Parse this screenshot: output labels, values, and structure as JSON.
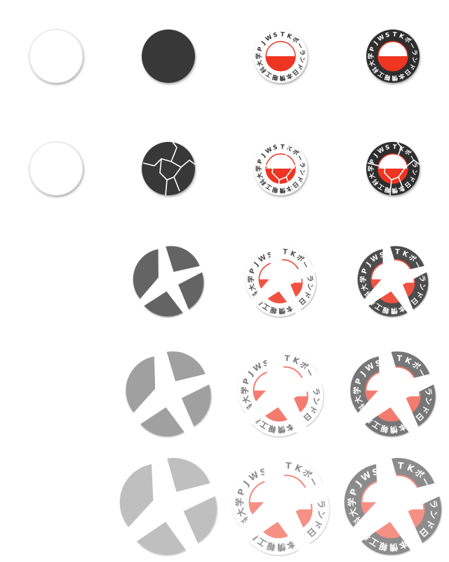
{
  "sheet": {
    "rows": [
      "intact",
      "cracked",
      "breaking",
      "shattering",
      "scattered"
    ],
    "columns": [
      "white-disc",
      "dark-disc",
      "light-badge",
      "dark-badge"
    ],
    "fragment_opacity": [
      1,
      1,
      0.85,
      0.65,
      0.55
    ]
  },
  "badge": {
    "arc_characters": [
      "学",
      "P",
      "J",
      "W",
      "S",
      "T",
      "K",
      "ポ",
      "ー",
      "ラ",
      "ン",
      "ド",
      "日",
      "本",
      "情",
      "報",
      "工",
      "科",
      "大"
    ],
    "colors": {
      "red": "#ee3524",
      "light_ring": "#ffffff",
      "dark_ring": "#2f2f2f",
      "dark_disc": "#383838",
      "white_disc": "#ffffff"
    }
  }
}
